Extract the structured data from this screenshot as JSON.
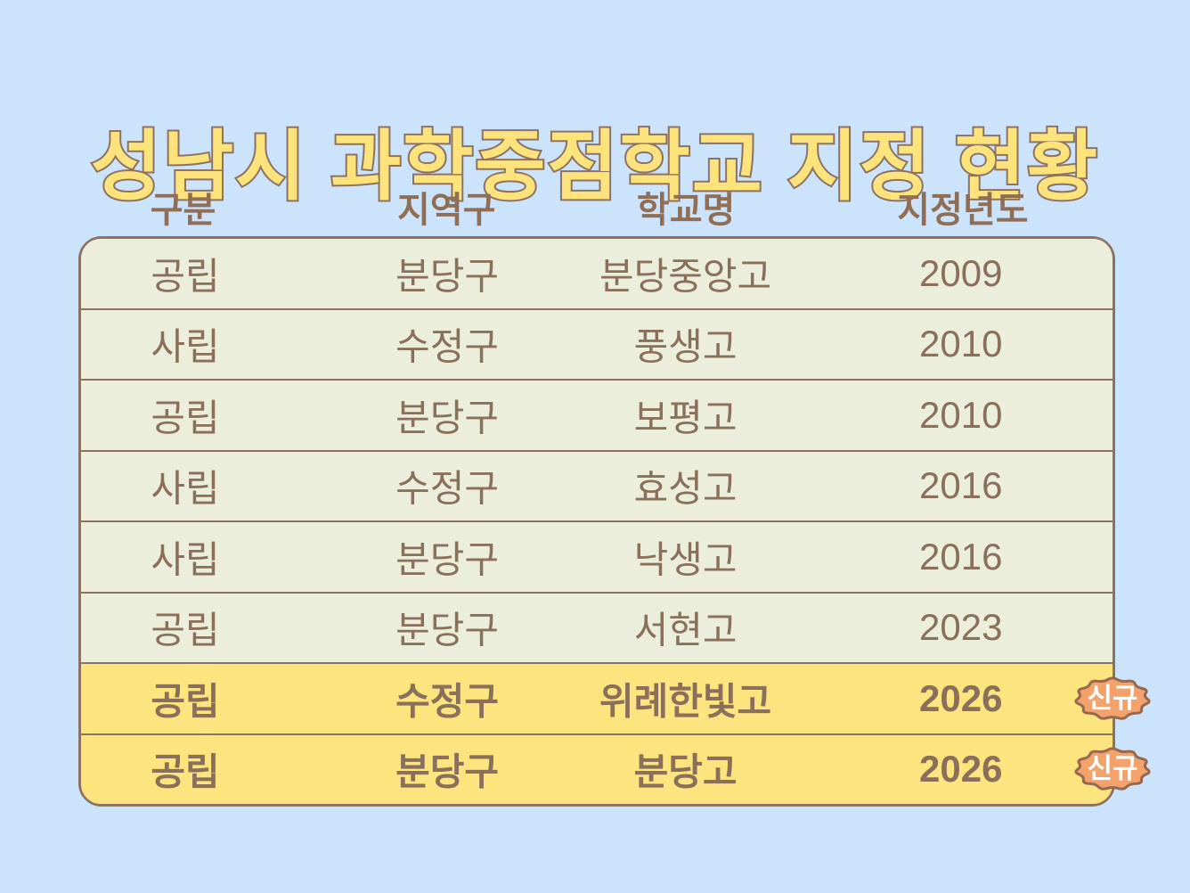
{
  "title": "성남시 과학중점학교 지정 현황",
  "colors": {
    "background": "#cbe3fb",
    "title_fill": "#fde37b",
    "title_stroke": "#8d7263",
    "header_text": "#8f6e55",
    "table_border": "#8d7263",
    "row_bg": "#eaeeda",
    "highlight_bg": "#fce47e",
    "cell_text": "#8a6f5b",
    "badge_fill": "#f4a26c",
    "badge_stroke": "#96684f",
    "badge_text": "#ffffff"
  },
  "chart_data": {
    "type": "table",
    "title": "성남시 과학중점학교 지정 현황",
    "columns": [
      "구분",
      "지역구",
      "학교명",
      "지정년도"
    ],
    "rows": [
      {
        "type": "공립",
        "district": "분당구",
        "school": "분당중앙고",
        "year": "2009",
        "highlight": false,
        "badge": ""
      },
      {
        "type": "사립",
        "district": "수정구",
        "school": "풍생고",
        "year": "2010",
        "highlight": false,
        "badge": ""
      },
      {
        "type": "공립",
        "district": "분당구",
        "school": "보평고",
        "year": "2010",
        "highlight": false,
        "badge": ""
      },
      {
        "type": "사립",
        "district": "수정구",
        "school": "효성고",
        "year": "2016",
        "highlight": false,
        "badge": ""
      },
      {
        "type": "사립",
        "district": "분당구",
        "school": "낙생고",
        "year": "2016",
        "highlight": false,
        "badge": ""
      },
      {
        "type": "공립",
        "district": "분당구",
        "school": "서현고",
        "year": "2023",
        "highlight": false,
        "badge": ""
      },
      {
        "type": "공립",
        "district": "수정구",
        "school": "위례한빛고",
        "year": "2026",
        "highlight": true,
        "badge": "신규"
      },
      {
        "type": "공립",
        "district": "분당구",
        "school": "분당고",
        "year": "2026",
        "highlight": true,
        "badge": "신규"
      }
    ]
  }
}
